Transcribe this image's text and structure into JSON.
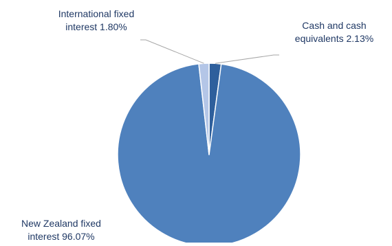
{
  "chart_data": {
    "type": "pie",
    "title": "",
    "slices": [
      {
        "name": "Cash and cash equivalents",
        "value": 2.13,
        "label_lines": [
          "Cash and cash",
          "equivalents 2.13%"
        ],
        "color": "#2e5f9c"
      },
      {
        "name": "New Zealand fixed interest",
        "value": 96.07,
        "label_lines": [
          "New Zealand fixed",
          "interest 96.07%"
        ],
        "color": "#4f81bd"
      },
      {
        "name": "International fixed interest",
        "value": 1.8,
        "label_lines": [
          "International fixed",
          "interest 1.80%"
        ],
        "color": "#b4c6e7"
      }
    ],
    "start_angle_deg": 0,
    "direction": "clockwise",
    "legend": "none",
    "label_color": "#1f3864",
    "leader_line_color": "#a6a6a6",
    "slice_border_color": "#ffffff"
  }
}
